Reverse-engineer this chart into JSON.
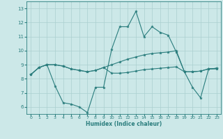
{
  "xlabel": "Humidex (Indice chaleur)",
  "background_color": "#cce8e8",
  "line_color": "#2a7d7d",
  "grid_color": "#aacfcf",
  "xlim": [
    -0.5,
    23.5
  ],
  "ylim": [
    5.5,
    13.5
  ],
  "xticks": [
    0,
    1,
    2,
    3,
    4,
    5,
    6,
    7,
    8,
    9,
    10,
    11,
    12,
    13,
    14,
    15,
    16,
    17,
    18,
    19,
    20,
    21,
    22,
    23
  ],
  "yticks": [
    6,
    7,
    8,
    9,
    10,
    11,
    12,
    13
  ],
  "series": [
    [
      8.3,
      8.8,
      9.0,
      7.5,
      6.3,
      6.2,
      6.0,
      5.6,
      7.4,
      7.4,
      10.1,
      11.7,
      11.7,
      12.8,
      11.0,
      11.7,
      11.3,
      11.1,
      9.9,
      8.5,
      7.4,
      6.65,
      8.7,
      8.7
    ],
    [
      8.3,
      8.8,
      9.0,
      9.0,
      8.9,
      8.7,
      8.6,
      8.5,
      8.6,
      8.8,
      9.0,
      9.2,
      9.4,
      9.55,
      9.7,
      9.8,
      9.85,
      9.9,
      10.0,
      8.5,
      8.5,
      8.55,
      8.7,
      8.75
    ],
    [
      8.3,
      8.8,
      9.0,
      9.0,
      8.9,
      8.7,
      8.6,
      8.5,
      8.6,
      8.8,
      8.4,
      8.4,
      8.45,
      8.55,
      8.65,
      8.7,
      8.75,
      8.8,
      8.85,
      8.5,
      8.5,
      8.55,
      8.7,
      8.75
    ]
  ]
}
